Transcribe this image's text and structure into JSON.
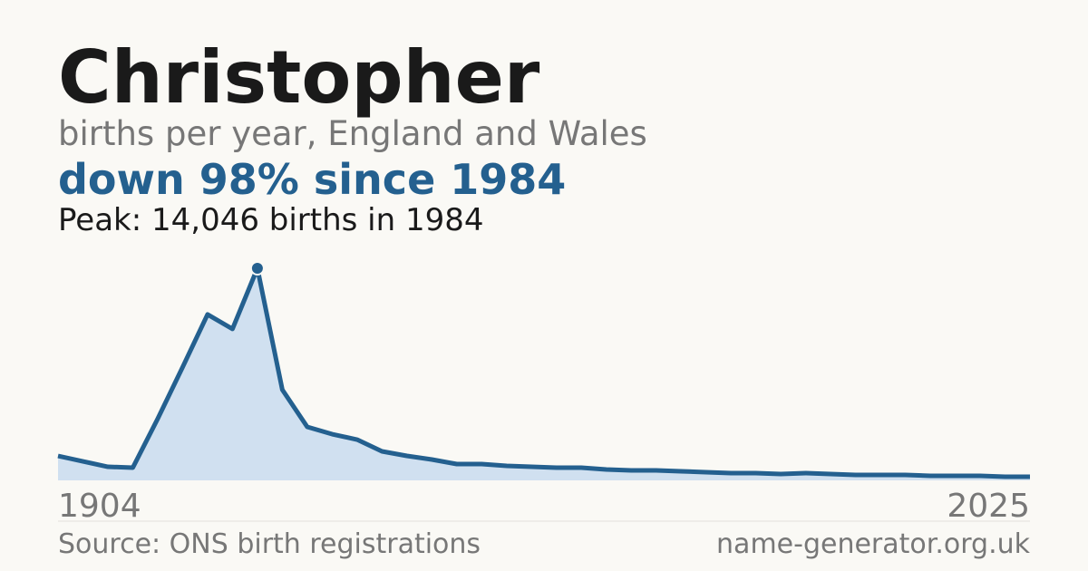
{
  "chart_data": {
    "type": "area",
    "title": "Christopher",
    "subtitle": "births per year, England and Wales",
    "headline": "down 98% since 1984",
    "annotation": "Peak: 14,046 births in 1984",
    "categories": [
      "1904",
      null,
      null,
      null,
      null,
      null,
      null,
      null,
      null,
      null,
      null,
      null,
      null,
      null,
      null,
      null,
      null,
      null,
      null,
      null,
      null,
      null,
      null,
      null,
      null,
      null,
      null,
      null,
      null,
      null,
      null,
      null,
      null,
      null,
      null,
      null,
      null,
      null,
      null,
      "2025"
    ],
    "values": [
      1620,
      1260,
      900,
      840,
      4080,
      7500,
      10990,
      10030,
      14046,
      6000,
      3540,
      3060,
      2700,
      1920,
      1620,
      1380,
      1080,
      1080,
      960,
      900,
      840,
      840,
      720,
      660,
      660,
      600,
      540,
      480,
      480,
      420,
      480,
      420,
      360,
      360,
      360,
      300,
      300,
      300,
      240,
      240
    ],
    "ylim": [
      0,
      14046
    ],
    "color": "#24608f",
    "fill": "#d0e0f0",
    "highlight_index": 8,
    "source": "Source: ONS birth registrations",
    "site": "name-generator.org.uk"
  }
}
